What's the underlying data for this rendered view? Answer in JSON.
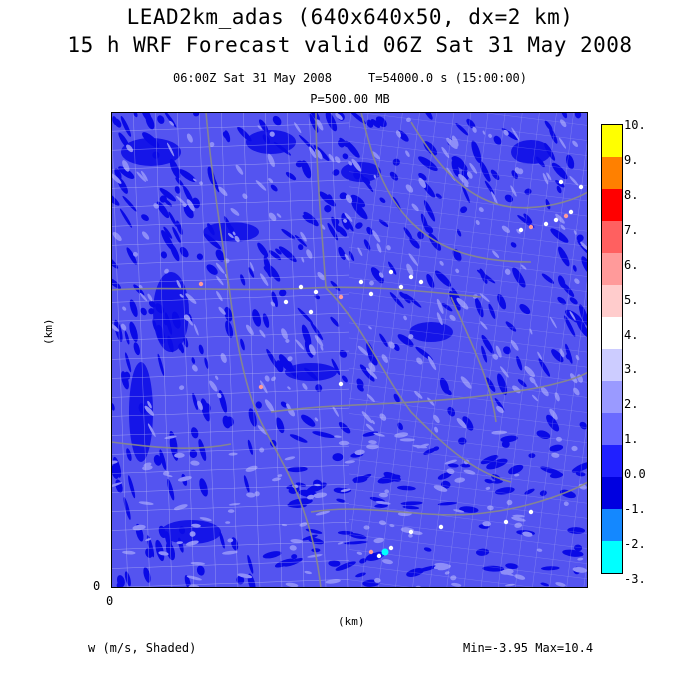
{
  "titles": {
    "line1": "LEAD2km_adas (640x640x50, dx=2 km)",
    "line2": "15 h WRF Forecast valid 06Z Sat 31 May 2008",
    "sub1": "06:00Z Sat 31 May 2008     T=54000.0 s (15:00:00)",
    "sub2": "P=500.00 MB"
  },
  "axes": {
    "ylabel": "(km)",
    "xlabel": "(km)",
    "y_origin_tick": "0",
    "x_origin_tick": "0"
  },
  "footer": {
    "field_label": "w (m/s, Shaded)",
    "minmax": "Min=-3.95 Max=10.4"
  },
  "colorbar": {
    "labels": [
      "10.",
      "9.",
      "8.",
      "7.",
      "6.",
      "5.",
      "4.",
      "3.",
      "2.",
      "1.",
      "0.0",
      "-1.",
      "-2.",
      "-3."
    ],
    "colors_top_to_bottom": [
      "#ffff00",
      "#ff8000",
      "#ff0000",
      "#ff6060",
      "#ff9a9a",
      "#ffcccc",
      "#ffffff",
      "#ccccff",
      "#9a9aff",
      "#6a6aff",
      "#2020ff",
      "#0000e0",
      "#1488ff",
      "#00ffff"
    ]
  },
  "map_colors": {
    "base": "#5454f0",
    "dark": "#0a0ae6",
    "light": "#8e8ef8",
    "county_lines": "#cfcfee",
    "state_lines": "#8a8a8a",
    "hotspot_white": "#ffffff",
    "hotspot_pink": "#ff9a9a",
    "hotspot_cyan": "#00ffff"
  }
}
